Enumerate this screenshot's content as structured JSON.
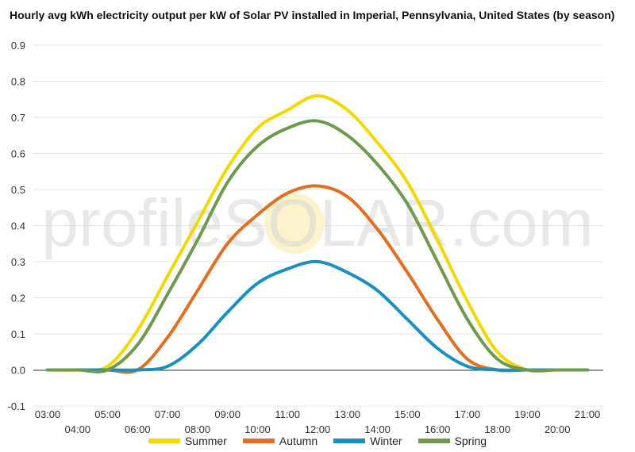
{
  "chart_data": {
    "type": "line",
    "title": "Hourly avg kWh electricity output per kW of Solar PV installed in Imperial, Pennsylvania, United States (by season)",
    "watermark": "profileSOLAR.com",
    "xlabel": "",
    "ylabel": "",
    "ylim": [
      -0.1,
      0.9
    ],
    "yticks": [
      "0.9",
      "0.8",
      "0.7",
      "0.6",
      "0.5",
      "0.4",
      "0.3",
      "0.2",
      "0.1",
      "0.0",
      "-0.1"
    ],
    "ytick_values": [
      0.9,
      0.8,
      0.7,
      0.6,
      0.5,
      0.4,
      0.3,
      0.2,
      0.1,
      0.0,
      -0.1
    ],
    "categories": [
      "03:00",
      "04:00",
      "05:00",
      "06:00",
      "07:00",
      "08:00",
      "09:00",
      "10:00",
      "11:00",
      "12:00",
      "13:00",
      "14:00",
      "15:00",
      "16:00",
      "17:00",
      "18:00",
      "19:00",
      "20:00",
      "21:00"
    ],
    "grid": true,
    "legend": "bottom",
    "series": [
      {
        "name": "Summer",
        "color": "#f2d700",
        "values": [
          0.0,
          0.0,
          0.01,
          0.11,
          0.26,
          0.41,
          0.56,
          0.67,
          0.72,
          0.76,
          0.72,
          0.63,
          0.52,
          0.36,
          0.19,
          0.05,
          0.0,
          0.0,
          0.0
        ]
      },
      {
        "name": "Autumn",
        "color": "#e06f22",
        "values": [
          0.0,
          0.0,
          0.0,
          0.0,
          0.09,
          0.22,
          0.35,
          0.43,
          0.49,
          0.51,
          0.48,
          0.39,
          0.27,
          0.14,
          0.03,
          0.0,
          0.0,
          0.0,
          0.0
        ]
      },
      {
        "name": "Winter",
        "color": "#1b8fbf",
        "values": [
          0.0,
          0.0,
          0.0,
          0.0,
          0.01,
          0.07,
          0.16,
          0.24,
          0.28,
          0.3,
          0.27,
          0.22,
          0.14,
          0.06,
          0.01,
          0.0,
          0.0,
          0.0,
          0.0
        ]
      },
      {
        "name": "Spring",
        "color": "#6f9a4d",
        "values": [
          0.0,
          0.0,
          0.0,
          0.07,
          0.21,
          0.36,
          0.52,
          0.62,
          0.67,
          0.69,
          0.65,
          0.57,
          0.46,
          0.3,
          0.14,
          0.03,
          0.0,
          0.0,
          0.0
        ]
      }
    ]
  }
}
